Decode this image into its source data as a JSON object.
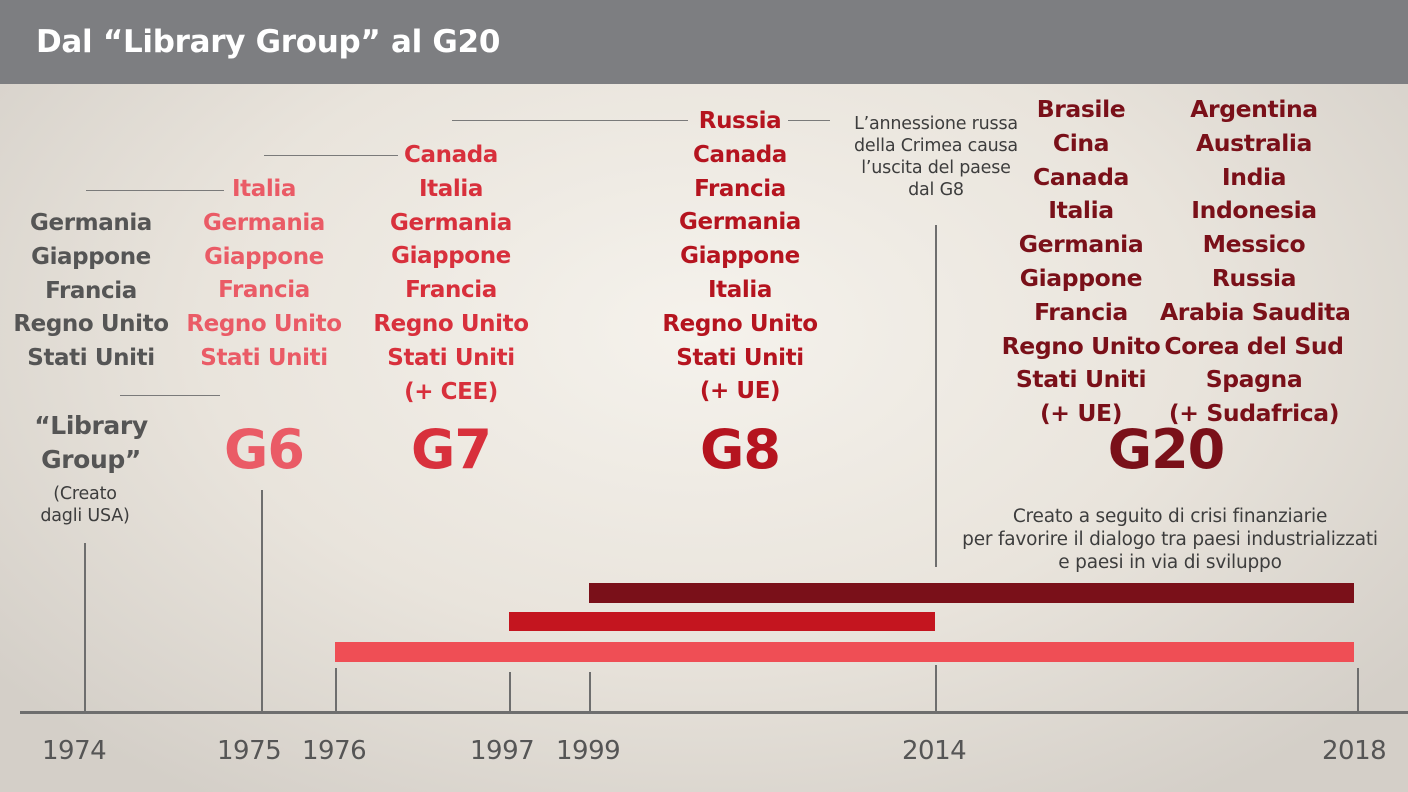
{
  "header": {
    "title": "Dal “Library Group” al G20"
  },
  "colors": {
    "header": "#7d7e81",
    "library": "#555555",
    "g6": "#ea5b66",
    "g7": "#d8303c",
    "g8": "#b5141f",
    "g20": "#7a1019",
    "bar_g6g7": "#ef4e55",
    "bar_g8": "#c4151f",
    "bar_g20": "#7a1019"
  },
  "groups": {
    "library": {
      "members": [
        "Germania",
        "Giappone",
        "Francia",
        "Regno Unito",
        "Stati Uniti"
      ],
      "label_line1": "“Library",
      "label_line2": "Group”",
      "note_line1": "(Creato",
      "note_line2": "dagli USA)"
    },
    "g6": {
      "members": [
        "Italia",
        "Germania",
        "Giappone",
        "Francia",
        "Regno Unito",
        "Stati Uniti"
      ],
      "label": "G6"
    },
    "g7": {
      "members": [
        "Canada",
        "Italia",
        "Germania",
        "Giappone",
        "Francia",
        "Regno Unito",
        "Stati Uniti",
        "(+ CEE)"
      ],
      "label": "G7"
    },
    "g8": {
      "members": [
        "Russia",
        "Canada",
        "Francia",
        "Germania",
        "Giappone",
        "Italia",
        "Regno Unito",
        "Stati Uniti",
        "(+ UE)"
      ],
      "label": "G8"
    },
    "g20": {
      "members_left": [
        "Brasile",
        "Cina",
        "Canada",
        "Italia",
        "Germania",
        "Giappone",
        "Francia",
        "Regno Unito",
        "Stati Uniti",
        "(+ UE)"
      ],
      "members_right": [
        "Argentina",
        "Australia",
        "India",
        "Indonesia",
        "Messico",
        "Russia",
        "Arabia Saudita",
        "Corea del Sud",
        "Spagna",
        "(+ Sudafrica)"
      ],
      "label": "G20"
    }
  },
  "annotations": {
    "crimea": [
      "L’annessione russa",
      "della Crimea causa",
      "l’uscita del paese",
      "dal G8"
    ],
    "g20_note": [
      "Creato a seguito di crisi finanziarie",
      "per favorire il dialogo tra paesi industrializzati",
      "e paesi in via di sviluppo"
    ]
  },
  "timeline": {
    "years": [
      "1974",
      "1975",
      "1976",
      "1997",
      "1999",
      "2014",
      "2018"
    ],
    "bars": [
      {
        "name": "G20",
        "start": 1999,
        "end": 2018
      },
      {
        "name": "G8",
        "start": 1997,
        "end": 2014
      },
      {
        "name": "G6-G7",
        "start": 1976,
        "end": 2018
      }
    ]
  }
}
